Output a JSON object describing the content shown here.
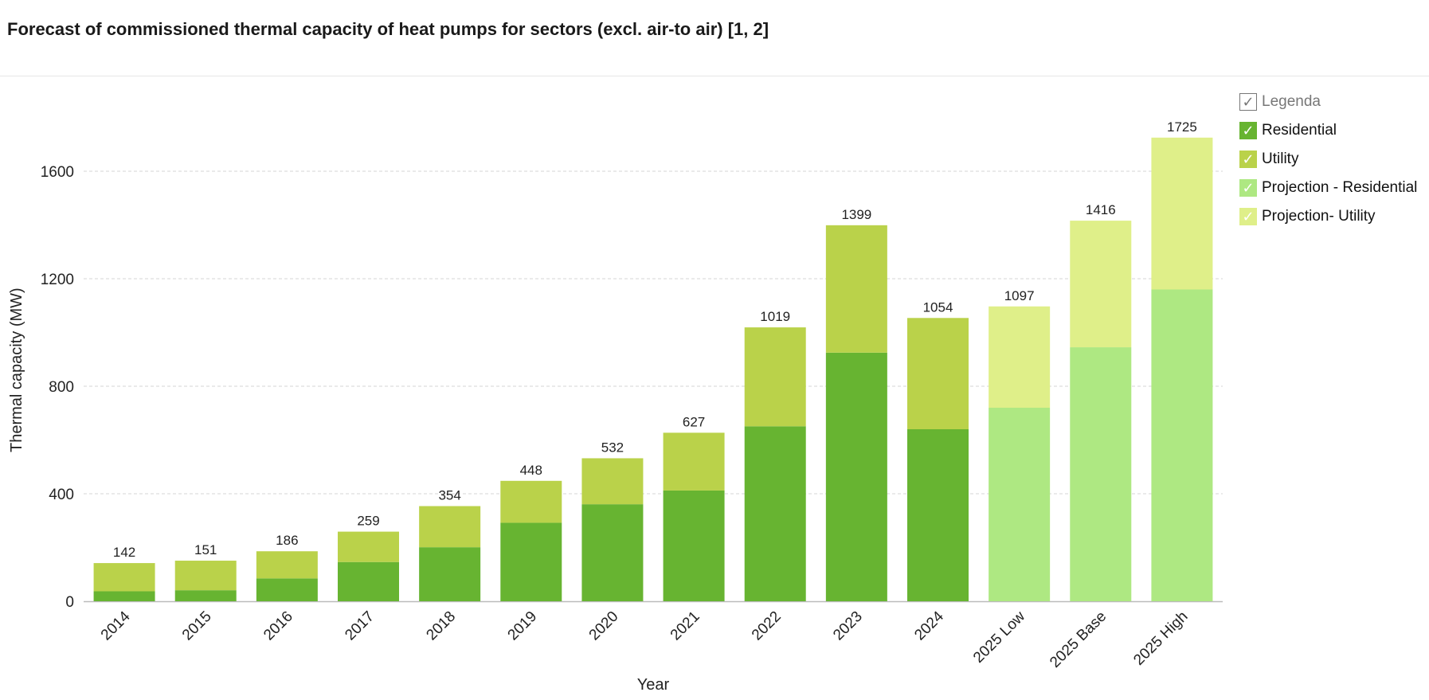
{
  "title": "Forecast of commissioned thermal capacity of heat pumps for sectors (excl. air-to air) [1, 2]",
  "legend": {
    "header": "Legenda",
    "check_glyph": "✓",
    "items": [
      {
        "label": "Residential",
        "color": "#67b431"
      },
      {
        "label": "Utility",
        "color": "#bad24a"
      },
      {
        "label": "Projection - Residential",
        "color": "#aee882"
      },
      {
        "label": "Projection- Utility",
        "color": "#dfef89"
      }
    ]
  },
  "chart_data": {
    "type": "bar",
    "stacked": true,
    "categories": [
      "2014",
      "2015",
      "2016",
      "2017",
      "2018",
      "2019",
      "2020",
      "2021",
      "2022",
      "2023",
      "2024",
      "2025 Low",
      "2025 Base",
      "2025 High"
    ],
    "series": [
      {
        "name": "Residential",
        "color": "#67b431",
        "values": [
          37,
          41,
          85,
          146,
          201,
          292,
          361,
          412,
          651,
          925,
          640,
          null,
          null,
          null
        ]
      },
      {
        "name": "Utility",
        "color": "#bad24a",
        "values": [
          105,
          110,
          101,
          113,
          153,
          156,
          171,
          215,
          368,
          474,
          414,
          null,
          null,
          null
        ]
      },
      {
        "name": "Projection - Residential",
        "color": "#aee882",
        "values": [
          null,
          null,
          null,
          null,
          null,
          null,
          null,
          null,
          null,
          null,
          null,
          720,
          945,
          1160
        ]
      },
      {
        "name": "Projection- Utility",
        "color": "#dfef89",
        "values": [
          null,
          null,
          null,
          null,
          null,
          null,
          null,
          null,
          null,
          null,
          null,
          377,
          471,
          565
        ]
      }
    ],
    "totals": [
      142,
      151,
      186,
      259,
      354,
      448,
      532,
      627,
      1019,
      1399,
      1054,
      1097,
      1416,
      1725
    ],
    "xlabel": "Year",
    "ylabel": "Thermal capacity (MW)",
    "yticks": [
      0,
      400,
      800,
      1200,
      1600
    ],
    "ylim": [
      0,
      1780
    ],
    "grid": true,
    "legend_position": "top-right"
  }
}
